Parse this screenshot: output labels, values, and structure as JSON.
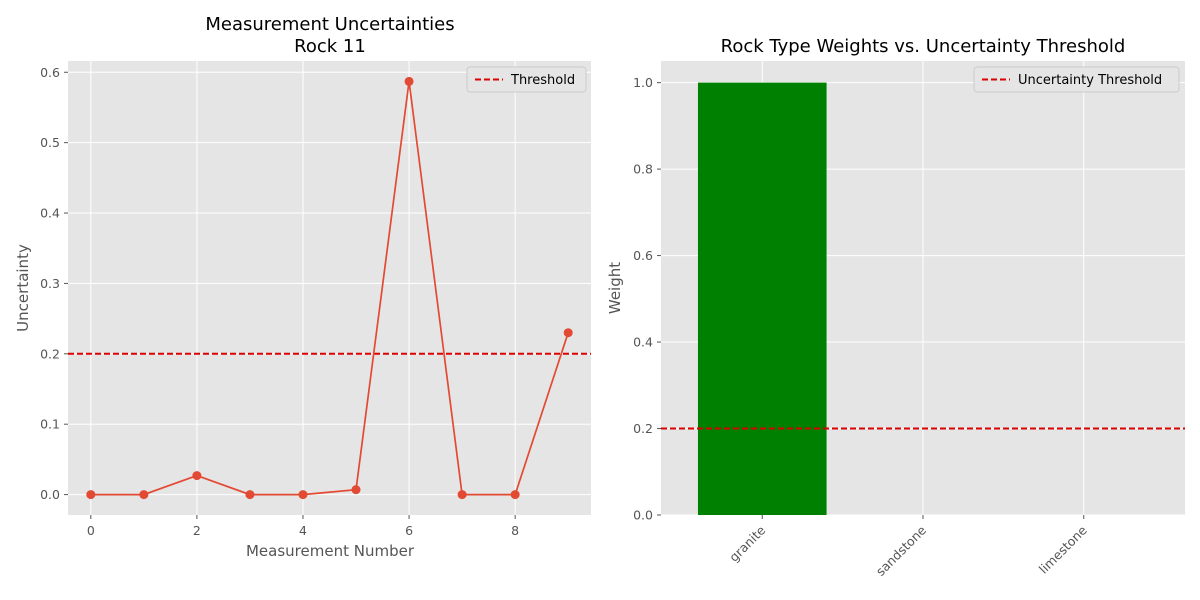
{
  "chart_data": [
    {
      "type": "line",
      "title": "Measurement Uncertainties",
      "subtitle": "Rock 11",
      "xlabel": "Measurement Number",
      "ylabel": "Uncertainty",
      "x": [
        0,
        1,
        2,
        3,
        4,
        5,
        6,
        7,
        8,
        9
      ],
      "series": [
        {
          "values": [
            0.0,
            0.0,
            0.027,
            0.0,
            0.0,
            0.007,
            0.587,
            0.0,
            0.0,
            0.23
          ],
          "color": "#E24A33"
        }
      ],
      "threshold": {
        "name": "Threshold",
        "value": 0.2,
        "color": "#dd0000"
      },
      "xlim": [
        -0.43,
        9.43
      ],
      "ylim": [
        -0.029,
        0.616
      ],
      "xticks": [
        0,
        2,
        4,
        6,
        8
      ],
      "xtick_labels": [
        "0",
        "2",
        "4",
        "6",
        "8"
      ],
      "yticks": [
        0.0,
        0.1,
        0.2,
        0.3,
        0.4,
        0.5,
        0.6
      ],
      "ytick_labels": [
        "0.0",
        "0.1",
        "0.2",
        "0.3",
        "0.4",
        "0.5",
        "0.6"
      ],
      "grid": true,
      "legend": "top-right"
    },
    {
      "type": "bar",
      "title": "Rock Type Weights vs. Uncertainty Threshold",
      "xlabel": "",
      "ylabel": "Weight",
      "categories": [
        "granite",
        "sandstone",
        "limestone"
      ],
      "values": [
        1.0,
        0.0,
        0.0
      ],
      "bar_color": "#008000",
      "threshold": {
        "name": "Uncertainty Threshold",
        "value": 0.2,
        "color": "#dd0000"
      },
      "ylim": [
        0.0,
        1.05
      ],
      "yticks": [
        0.0,
        0.2,
        0.4,
        0.6,
        0.8,
        1.0
      ],
      "ytick_labels": [
        "0.0",
        "0.2",
        "0.4",
        "0.6",
        "0.8",
        "1.0"
      ],
      "grid": true,
      "legend": "top-right"
    }
  ]
}
